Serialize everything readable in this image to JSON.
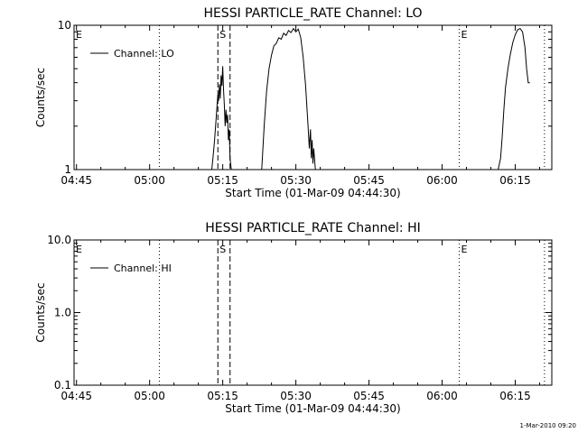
{
  "footer_text": "1-Mar-2010 09:20",
  "chart_data": [
    {
      "type": "line",
      "title": "HESSI PARTICLE_RATE Channel: LO",
      "xlabel": "Start Time (01-Mar-09 04:44:30)",
      "ylabel": "Counts/sec",
      "y_scale": "log",
      "ylim": [
        1,
        10
      ],
      "xlim": [
        "04:44:30",
        "06:22:30"
      ],
      "x_ticks": [
        "04:45",
        "05:00",
        "05:15",
        "05:30",
        "05:45",
        "06:00",
        "06:15"
      ],
      "y_ticks": [
        "1",
        "10"
      ],
      "legend": {
        "label": "Channel: LO",
        "position": "top-left"
      },
      "series": [
        {
          "name": "Channel: LO",
          "segments": [
            [
              [
                "05:12:45",
                1.0
              ],
              [
                "05:13:00",
                1.2
              ],
              [
                "05:13:20",
                1.6
              ],
              [
                "05:13:40",
                2.3
              ],
              [
                "05:14:00",
                3.3
              ],
              [
                "05:14:10",
                3.0
              ],
              [
                "05:14:20",
                3.9
              ],
              [
                "05:14:30",
                3.1
              ],
              [
                "05:14:40",
                4.5
              ],
              [
                "05:14:50",
                3.8
              ],
              [
                "05:15:00",
                5.2
              ],
              [
                "05:15:10",
                3.6
              ],
              [
                "05:15:20",
                2.8
              ],
              [
                "05:15:30",
                2.0
              ],
              [
                "05:15:40",
                2.6
              ],
              [
                "05:15:50",
                2.1
              ],
              [
                "05:16:00",
                2.4
              ],
              [
                "05:16:10",
                1.6
              ],
              [
                "05:16:20",
                1.9
              ],
              [
                "05:16:30",
                1.2
              ],
              [
                "05:16:45",
                1.0
              ]
            ],
            [
              [
                "05:23:00",
                1.0
              ],
              [
                "05:23:30",
                2.0
              ],
              [
                "05:24:00",
                3.5
              ],
              [
                "05:24:30",
                5.0
              ],
              [
                "05:25:00",
                6.2
              ],
              [
                "05:25:30",
                7.2
              ],
              [
                "05:26:00",
                7.5
              ],
              [
                "05:26:30",
                8.2
              ],
              [
                "05:27:00",
                8.0
              ],
              [
                "05:27:30",
                8.8
              ],
              [
                "05:28:00",
                8.5
              ],
              [
                "05:28:30",
                9.2
              ],
              [
                "05:29:00",
                8.9
              ],
              [
                "05:29:30",
                9.5
              ],
              [
                "05:30:00",
                9.0
              ],
              [
                "05:30:30",
                9.4
              ],
              [
                "05:31:00",
                8.2
              ],
              [
                "05:31:30",
                6.0
              ],
              [
                "05:32:00",
                3.8
              ],
              [
                "05:32:30",
                2.0
              ],
              [
                "05:32:45",
                1.4
              ],
              [
                "05:33:00",
                1.9
              ],
              [
                "05:33:10",
                1.2
              ],
              [
                "05:33:20",
                1.6
              ],
              [
                "05:33:30",
                1.1
              ],
              [
                "05:33:40",
                1.4
              ],
              [
                "05:34:00",
                1.0
              ]
            ],
            [
              [
                "06:11:30",
                1.0
              ],
              [
                "06:12:00",
                1.2
              ],
              [
                "06:12:20",
                1.7
              ],
              [
                "06:12:40",
                2.6
              ],
              [
                "06:13:00",
                3.7
              ],
              [
                "06:13:30",
                5.0
              ],
              [
                "06:14:00",
                6.3
              ],
              [
                "06:14:30",
                7.6
              ],
              [
                "06:15:00",
                8.6
              ],
              [
                "06:15:30",
                9.3
              ],
              [
                "06:16:00",
                9.5
              ],
              [
                "06:16:30",
                9.0
              ],
              [
                "06:17:00",
                7.0
              ],
              [
                "06:17:20",
                5.0
              ],
              [
                "06:17:40",
                4.0
              ],
              [
                "06:18:00",
                4.0
              ]
            ]
          ]
        }
      ],
      "markers": [
        {
          "time": "05:02:00",
          "style": "dotted",
          "label": ""
        },
        {
          "time": "05:14:00",
          "style": "dashed",
          "label": "S"
        },
        {
          "time": "05:16:30",
          "style": "dashed",
          "label": ""
        },
        {
          "time": "06:03:30",
          "style": "dotted",
          "label": "E"
        },
        {
          "time": "06:21:00",
          "style": "dotted",
          "label": ""
        }
      ],
      "edge_label": "E"
    },
    {
      "type": "line",
      "title": "HESSI PARTICLE_RATE Channel: HI",
      "xlabel": "Start Time (01-Mar-09 04:44:30)",
      "ylabel": "Counts/sec",
      "y_scale": "log",
      "ylim": [
        0.1,
        10
      ],
      "xlim": [
        "04:44:30",
        "06:22:30"
      ],
      "x_ticks": [
        "04:45",
        "05:00",
        "05:15",
        "05:30",
        "05:45",
        "06:00",
        "06:15"
      ],
      "y_ticks": [
        "0.1",
        "1.0",
        "10.0"
      ],
      "legend": {
        "label": "Channel: HI",
        "position": "top-left"
      },
      "series": [
        {
          "name": "Channel: HI",
          "segments": []
        }
      ],
      "markers": [
        {
          "time": "05:02:00",
          "style": "dotted",
          "label": ""
        },
        {
          "time": "05:14:00",
          "style": "dashed",
          "label": "S"
        },
        {
          "time": "05:16:30",
          "style": "dashed",
          "label": ""
        },
        {
          "time": "06:03:30",
          "style": "dotted",
          "label": "E"
        },
        {
          "time": "06:21:00",
          "style": "dotted",
          "label": ""
        }
      ],
      "edge_label": "E"
    }
  ]
}
